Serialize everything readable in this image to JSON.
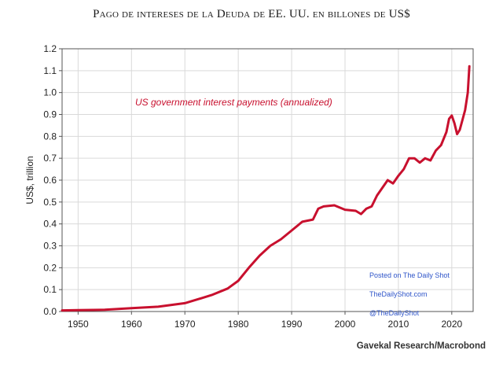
{
  "title": "Pago de intereses de la Deuda de EE. UU. en billones de US$",
  "colors": {
    "line": "#c8102e",
    "grid": "#d9d9d9",
    "text": "#222222",
    "watermark": "#2f55c9"
  },
  "chart_data": {
    "type": "line",
    "ylabel": "US$, trillion",
    "xlabel": "",
    "xlim": [
      1947,
      2024
    ],
    "ylim": [
      0,
      1.2
    ],
    "xticks": [
      1950,
      1960,
      1970,
      1980,
      1990,
      2000,
      2010,
      2020
    ],
    "yticks": [
      0.0,
      0.1,
      0.2,
      0.3,
      0.4,
      0.5,
      0.6,
      0.7,
      0.8,
      0.9,
      1.0,
      1.1,
      1.2
    ],
    "ytick_labels": [
      "0.0",
      "0.1",
      "0.2",
      "0.3",
      "0.4",
      "0.5",
      "0.6",
      "0.7",
      "0.8",
      "0.9",
      "1.0",
      "1.1",
      "1.2"
    ],
    "grid": true,
    "annotation": "US government interest payments (annualized)",
    "series": [
      {
        "name": "US government interest payments (annualized)",
        "color": "#c8102e",
        "x": [
          1947,
          1950,
          1955,
          1960,
          1965,
          1970,
          1973,
          1975,
          1978,
          1980,
          1982,
          1984,
          1986,
          1988,
          1990,
          1992,
          1994,
          1995,
          1996,
          1998,
          2000,
          2002,
          2003,
          2004,
          2005,
          2006,
          2008,
          2009,
          2010,
          2011,
          2012,
          2013,
          2014,
          2015,
          2016,
          2017,
          2018,
          2019,
          2019.5,
          2020,
          2020.5,
          2021,
          2021.5,
          2022,
          2022.5,
          2023,
          2023.3
        ],
        "y": [
          0.005,
          0.006,
          0.008,
          0.015,
          0.022,
          0.038,
          0.06,
          0.075,
          0.105,
          0.14,
          0.2,
          0.255,
          0.3,
          0.33,
          0.37,
          0.41,
          0.42,
          0.47,
          0.48,
          0.485,
          0.465,
          0.46,
          0.445,
          0.47,
          0.48,
          0.53,
          0.6,
          0.585,
          0.62,
          0.65,
          0.7,
          0.7,
          0.68,
          0.7,
          0.69,
          0.735,
          0.76,
          0.82,
          0.88,
          0.895,
          0.86,
          0.81,
          0.83,
          0.875,
          0.92,
          1.0,
          1.12
        ]
      }
    ]
  },
  "watermark": {
    "line1": "Posted on The Daily Shot",
    "line2": "TheDailyShot.com",
    "line3": "@TheDailyShot"
  },
  "source": "Gavekal Research/Macrobond"
}
